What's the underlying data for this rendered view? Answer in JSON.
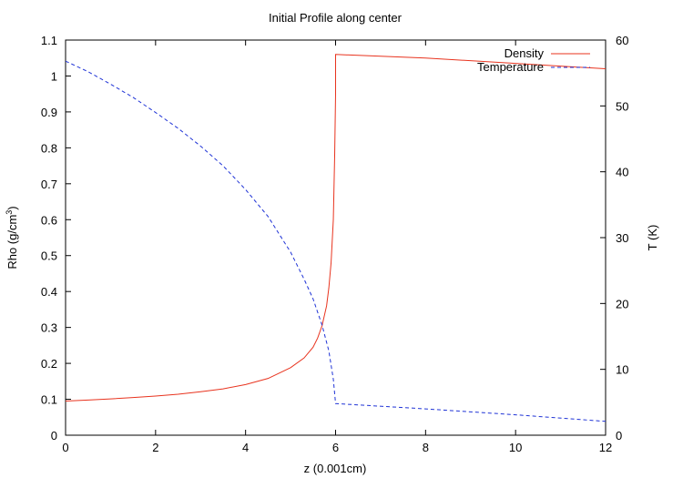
{
  "chart_data": {
    "type": "line",
    "title": "Initial Profile along center",
    "xlabel": "z (0.001cm)",
    "ylabel": "Rho (g/cm",
    "ylabel_sup": "3",
    "y2label": "T (K)",
    "xlim": [
      0,
      12
    ],
    "ylim": [
      0,
      1.1
    ],
    "y2lim": [
      0,
      60
    ],
    "xticks": [
      0,
      2,
      4,
      6,
      8,
      10,
      12
    ],
    "yticks": [
      0,
      0.1,
      0.2,
      0.3,
      0.4,
      0.5,
      0.6,
      0.7,
      0.8,
      0.9,
      1,
      1.1
    ],
    "y2ticks": [
      0,
      10,
      20,
      30,
      40,
      50,
      60
    ],
    "grid": false,
    "legend_position": "top-right",
    "series": [
      {
        "name": "Density",
        "axis": "left",
        "color": "#e8331e",
        "dash": "solid",
        "x": [
          0,
          0.5,
          1,
          1.5,
          2,
          2.5,
          3,
          3.5,
          4,
          4.5,
          5,
          5.3,
          5.5,
          5.6,
          5.7,
          5.8,
          5.85,
          5.9,
          5.95,
          5.98,
          6.0,
          6.0,
          8,
          10,
          12
        ],
        "y": [
          0.095,
          0.098,
          0.101,
          0.105,
          0.109,
          0.114,
          0.121,
          0.129,
          0.141,
          0.158,
          0.188,
          0.215,
          0.245,
          0.27,
          0.305,
          0.36,
          0.41,
          0.48,
          0.6,
          0.78,
          0.95,
          1.06,
          1.05,
          1.035,
          1.02
        ]
      },
      {
        "name": "Temperature",
        "axis": "right",
        "color": "#1f33d6",
        "dash": "dashed",
        "x": [
          0,
          0.5,
          1,
          1.5,
          2,
          2.5,
          3,
          3.5,
          4,
          4.5,
          5,
          5.3,
          5.5,
          5.7,
          5.85,
          5.95,
          6.0,
          8,
          10,
          12
        ],
        "y": [
          56.8,
          55.2,
          53.3,
          51.3,
          49.0,
          46.6,
          43.9,
          40.9,
          37.3,
          33.2,
          27.8,
          23.7,
          20.7,
          16.7,
          12.8,
          8.5,
          4.8,
          4.0,
          3.1,
          2.1
        ]
      }
    ]
  }
}
